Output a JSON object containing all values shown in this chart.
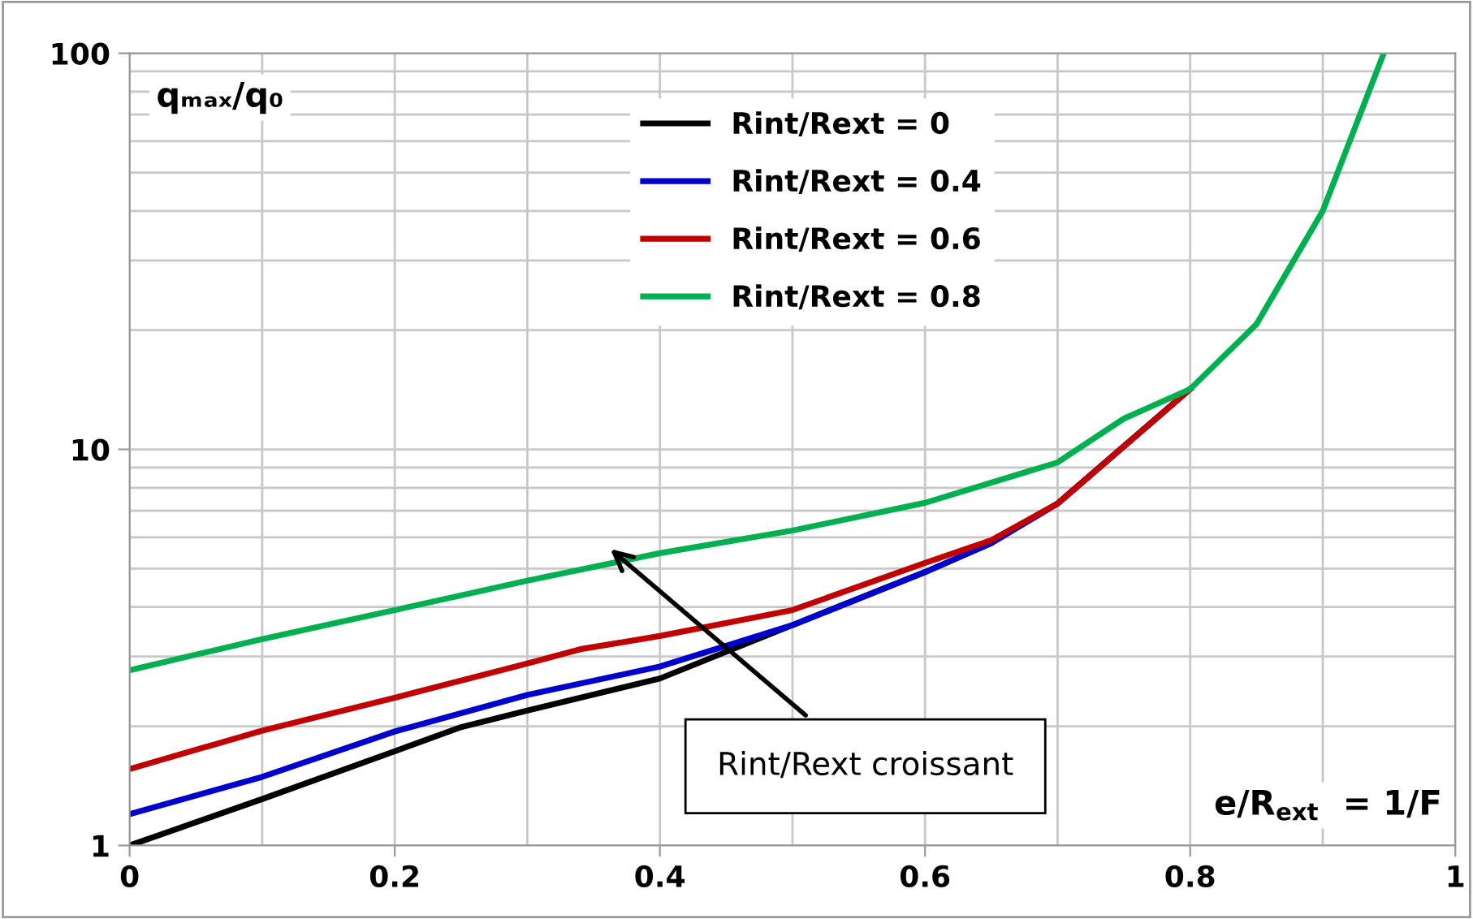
{
  "chart_data": {
    "type": "line",
    "xlabel": "e/R$_{ext}$  = 1/F",
    "ylabel": "qₘₐₓ/q₀",
    "series": [
      {
        "name": "Rint/Rext = 0",
        "color": "#000000",
        "x": [
          0,
          0.1,
          0.2,
          0.25,
          0.3,
          0.4,
          0.5,
          0.6,
          0.65,
          0.7,
          0.8
        ],
        "values": [
          1,
          1.31,
          1.73,
          1.99,
          2.19,
          2.64,
          3.6,
          4.9,
          5.8,
          7.3,
          14.2
        ]
      },
      {
        "name": "Rint/Rext = 0.4",
        "color": "#0000cc",
        "x": [
          0,
          0.1,
          0.2,
          0.3,
          0.4,
          0.5,
          0.6,
          0.65,
          0.7,
          0.8
        ],
        "values": [
          1.2,
          1.49,
          1.94,
          2.4,
          2.83,
          3.6,
          4.9,
          5.8,
          7.3,
          14.2
        ]
      },
      {
        "name": "Rint/Rext = 0.6",
        "color": "#c00000",
        "x": [
          0,
          0.1,
          0.2,
          0.3,
          0.34,
          0.4,
          0.5,
          0.6,
          0.65,
          0.7,
          0.8
        ],
        "values": [
          1.56,
          1.95,
          2.36,
          2.88,
          3.13,
          3.38,
          3.93,
          5.17,
          5.9,
          7.3,
          14.2
        ]
      },
      {
        "name": "Rint/Rext = 0.8",
        "color": "#00b050",
        "x": [
          0,
          0.1,
          0.2,
          0.3,
          0.4,
          0.5,
          0.6,
          0.7,
          0.75,
          0.8,
          0.85,
          0.9,
          0.946
        ],
        "values": [
          2.77,
          3.32,
          3.93,
          4.66,
          5.47,
          6.24,
          7.33,
          9.27,
          11.96,
          14.2,
          20.7,
          40,
          100
        ]
      }
    ],
    "xlim": [
      0,
      1
    ],
    "xticks": [
      0,
      0.2,
      0.4,
      0.6,
      0.8,
      1
    ],
    "ylim": [
      1,
      100
    ],
    "yticks": [
      1,
      10,
      100
    ],
    "log": "y",
    "grid": true,
    "legend": "top",
    "marker": "none",
    "line_style": "solid",
    "annotations": [
      "Rint/Rext croissant"
    ]
  }
}
